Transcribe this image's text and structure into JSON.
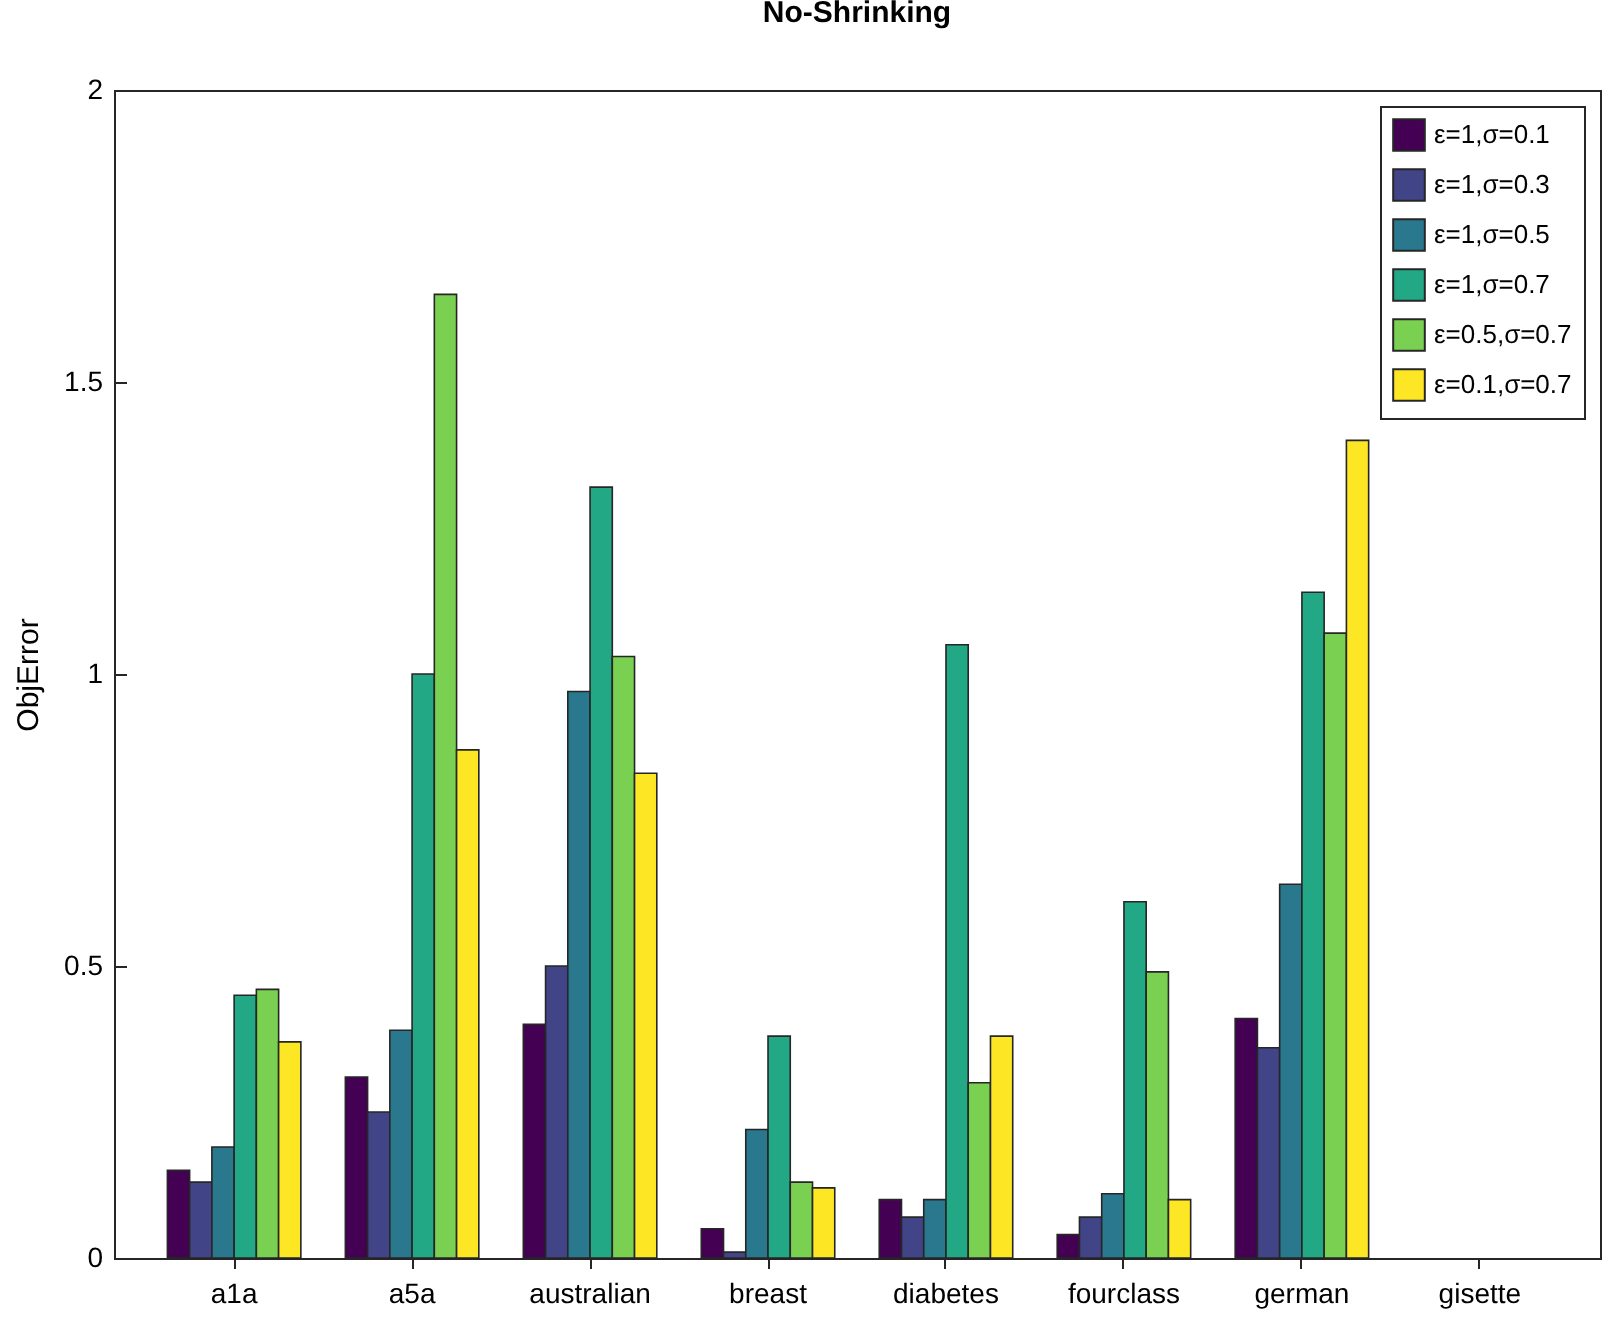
{
  "chart_data": {
    "type": "bar",
    "title": "No-Shrinking",
    "ylabel": "ObjError",
    "categories": [
      "a1a",
      "a5a",
      "australian",
      "breast",
      "diabetes",
      "fourclass",
      "german",
      "gisette"
    ],
    "series": [
      {
        "name": "ε=1,σ=0.1",
        "color": "#440154",
        "values": [
          0.15,
          0.31,
          0.4,
          0.05,
          0.1,
          0.04,
          0.41,
          null
        ]
      },
      {
        "name": "ε=1,σ=0.3",
        "color": "#414487",
        "values": [
          0.13,
          0.25,
          0.5,
          0.01,
          0.07,
          0.07,
          0.36,
          null
        ]
      },
      {
        "name": "ε=1,σ=0.5",
        "color": "#2a788e",
        "values": [
          0.19,
          0.39,
          0.97,
          0.22,
          0.1,
          0.11,
          0.64,
          null
        ]
      },
      {
        "name": "ε=1,σ=0.7",
        "color": "#22a884",
        "values": [
          0.45,
          1.0,
          1.32,
          0.38,
          1.05,
          0.61,
          1.14,
          null
        ]
      },
      {
        "name": "ε=0.5,σ=0.7",
        "color": "#7ad151",
        "values": [
          0.46,
          1.65,
          1.03,
          0.13,
          0.3,
          0.49,
          1.07,
          null
        ]
      },
      {
        "name": "ε=0.1,σ=0.7",
        "color": "#fde725",
        "values": [
          0.37,
          0.87,
          0.83,
          0.12,
          0.38,
          0.1,
          1.4,
          null
        ]
      }
    ],
    "ylim": [
      0,
      2
    ],
    "yticks": [
      0,
      0.5,
      1,
      1.5,
      2
    ],
    "grid": false,
    "legend": "top right"
  }
}
